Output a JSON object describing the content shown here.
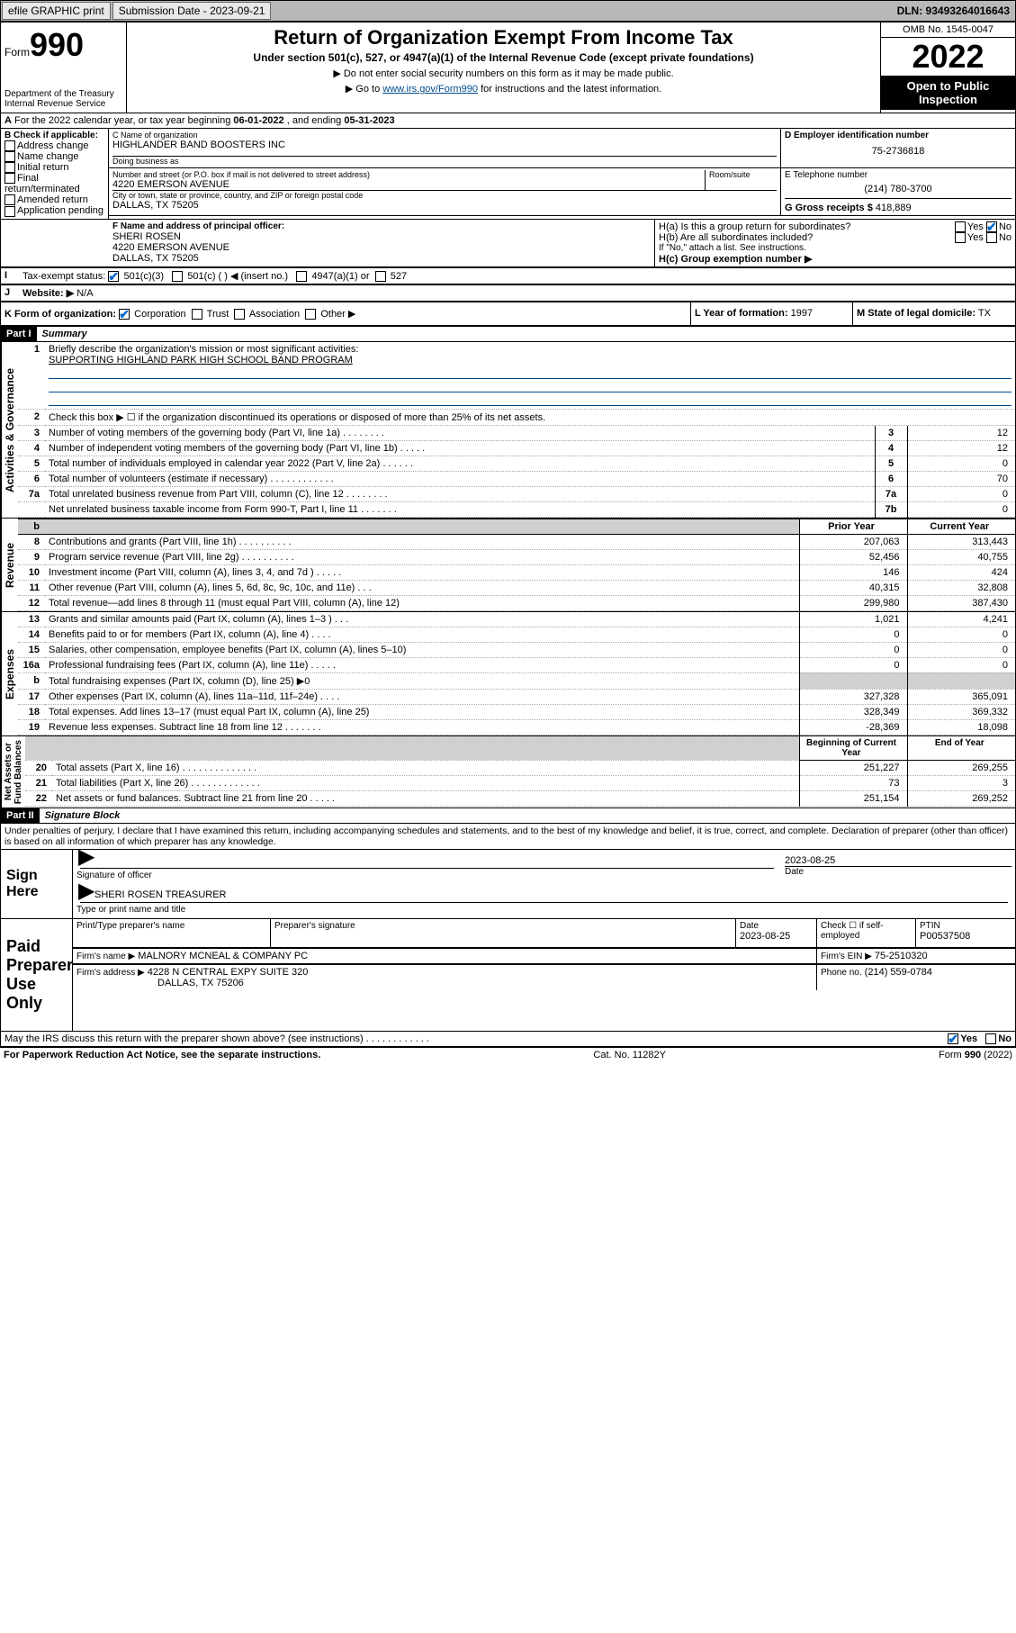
{
  "topbar": {
    "efile": "efile GRAPHIC print",
    "submission_label": "Submission Date - 2023-09-21",
    "dln": "DLN: 93493264016643"
  },
  "header": {
    "form_word": "Form",
    "form_num": "990",
    "title": "Return of Organization Exempt From Income Tax",
    "subtitle": "Under section 501(c), 527, or 4947(a)(1) of the Internal Revenue Code (except private foundations)",
    "note1": "▶ Do not enter social security numbers on this form as it may be made public.",
    "note2_pre": "▶ Go to ",
    "note2_link": "www.irs.gov/Form990",
    "note2_post": " for instructions and the latest information.",
    "dept": "Department of the Treasury\nInternal Revenue Service",
    "omb": "OMB No. 1545-0047",
    "year": "2022",
    "open": "Open to Public Inspection"
  },
  "lineA": {
    "text_pre": "For the 2022 calendar year, or tax year beginning ",
    "begin": "06-01-2022",
    "mid": " , and ending ",
    "end": "05-31-2023"
  },
  "boxB": {
    "title": "B Check if applicable:",
    "items": [
      "Address change",
      "Name change",
      "Initial return",
      "Final return/terminated",
      "Amended return",
      "Application pending"
    ]
  },
  "boxC": {
    "label_name": "C Name of organization",
    "org_name": "HIGHLANDER BAND BOOSTERS INC",
    "dba_label": "Doing business as",
    "dba": "",
    "addr_label": "Number and street (or P.O. box if mail is not delivered to street address)",
    "room_label": "Room/suite",
    "street": "4220 EMERSON AVENUE",
    "city_label": "City or town, state or province, country, and ZIP or foreign postal code",
    "city": "DALLAS, TX  75205"
  },
  "boxD": {
    "label": "D Employer identification number",
    "value": "75-2736818"
  },
  "boxE": {
    "label": "E Telephone number",
    "value": "(214) 780-3700"
  },
  "boxG": {
    "label": "G Gross receipts $",
    "value": "418,889"
  },
  "boxF": {
    "label": "F Name and address of principal officer:",
    "name": "SHERI ROSEN",
    "street": "4220 EMERSON AVENUE",
    "city": "DALLAS, TX  75205"
  },
  "boxH": {
    "a_label": "H(a)  Is this a group return for subordinates?",
    "a_yes": "Yes",
    "a_no": "No",
    "b_label": "H(b)  Are all subordinates included?",
    "b_yes": "Yes",
    "b_no": "No",
    "b_note": "If \"No,\" attach a list. See instructions.",
    "c_label": "H(c)  Group exemption number ▶"
  },
  "boxI": {
    "label": "Tax-exempt status:",
    "opt1": "501(c)(3)",
    "opt2": "501(c) (   ) ◀ (insert no.)",
    "opt3": "4947(a)(1) or",
    "opt4": "527"
  },
  "boxJ": {
    "label": "Website: ▶",
    "value": "N/A"
  },
  "boxK": {
    "label": "K Form of organization:",
    "opts": [
      "Corporation",
      "Trust",
      "Association",
      "Other ▶"
    ]
  },
  "boxL": {
    "label": "L Year of formation:",
    "value": "1997"
  },
  "boxM": {
    "label": "M State of legal domicile:",
    "value": "TX"
  },
  "part1": {
    "header": "Part I",
    "title": "Summary",
    "line1_label": "Briefly describe the organization's mission or most significant activities:",
    "line1_value": "SUPPORTING HIGHLAND PARK HIGH SCHOOL BAND PROGRAM",
    "line2": "Check this box ▶ ☐  if the organization discontinued its operations or disposed of more than 25% of its net assets.",
    "sectA_label": "Activities & Governance",
    "sectR_label": "Revenue",
    "sectE_label": "Expenses",
    "sectN_label": "Net Assets or\nFund Balances",
    "colA": "Prior Year",
    "colB": "Current Year",
    "colC": "Beginning of Current Year",
    "colD": "End of Year",
    "rowsA": [
      {
        "n": "3",
        "t": "Number of voting members of the governing body (Part VI, line 1a)   .    .    .    .    .    .    .    .",
        "r": "3",
        "v": "12"
      },
      {
        "n": "4",
        "t": "Number of independent voting members of the governing body (Part VI, line 1b)    .    .    .    .    .",
        "r": "4",
        "v": "12"
      },
      {
        "n": "5",
        "t": "Total number of individuals employed in calendar year 2022 (Part V, line 2a)    .    .    .    .    .    .",
        "r": "5",
        "v": "0"
      },
      {
        "n": "6",
        "t": "Total number of volunteers (estimate if necessary)    .    .    .    .    .    .    .    .    .    .    .    .",
        "r": "6",
        "v": "70"
      },
      {
        "n": "7a",
        "t": "Total unrelated business revenue from Part VIII, column (C), line 12   .    .    .    .    .    .    .    .",
        "r": "7a",
        "v": "0"
      },
      {
        "n": "",
        "t": "Net unrelated business taxable income from Form 990-T, Part I, line 11   .    .    .    .    .    .    .",
        "r": "7b",
        "v": "0"
      }
    ],
    "rowsR": [
      {
        "n": "8",
        "t": "Contributions and grants (Part VIII, line 1h)   .    .    .    .    .    .    .    .    .    .",
        "p": "207,063",
        "c": "313,443"
      },
      {
        "n": "9",
        "t": "Program service revenue (Part VIII, line 2g)   .    .    .    .    .    .    .    .    .    .",
        "p": "52,456",
        "c": "40,755"
      },
      {
        "n": "10",
        "t": "Investment income (Part VIII, column (A), lines 3, 4, and 7d )    .    .    .    .    .",
        "p": "146",
        "c": "424"
      },
      {
        "n": "11",
        "t": "Other revenue (Part VIII, column (A), lines 5, 6d, 8c, 9c, 10c, and 11e)    .    .    .",
        "p": "40,315",
        "c": "32,808"
      },
      {
        "n": "12",
        "t": "Total revenue—add lines 8 through 11 (must equal Part VIII, column (A), line 12)",
        "p": "299,980",
        "c": "387,430"
      }
    ],
    "rowsE": [
      {
        "n": "13",
        "t": "Grants and similar amounts paid (Part IX, column (A), lines 1–3 )   .    .    .",
        "p": "1,021",
        "c": "4,241"
      },
      {
        "n": "14",
        "t": "Benefits paid to or for members (Part IX, column (A), line 4)    .    .    .    .",
        "p": "0",
        "c": "0"
      },
      {
        "n": "15",
        "t": "Salaries, other compensation, employee benefits (Part IX, column (A), lines 5–10)",
        "p": "0",
        "c": "0"
      },
      {
        "n": "16a",
        "t": "Professional fundraising fees (Part IX, column (A), line 11e)   .    .    .    .    .",
        "p": "0",
        "c": "0"
      },
      {
        "n": "b",
        "t": "Total fundraising expenses (Part IX, column (D), line 25) ▶0",
        "p": "",
        "c": "",
        "shaded": true
      },
      {
        "n": "17",
        "t": "Other expenses (Part IX, column (A), lines 11a–11d, 11f–24e)   .    .    .    .",
        "p": "327,328",
        "c": "365,091"
      },
      {
        "n": "18",
        "t": "Total expenses. Add lines 13–17 (must equal Part IX, column (A), line 25)",
        "p": "328,349",
        "c": "369,332"
      },
      {
        "n": "19",
        "t": "Revenue less expenses. Subtract line 18 from line 12   .    .    .    .    .    .    .",
        "p": "-28,369",
        "c": "18,098"
      }
    ],
    "rowsN": [
      {
        "n": "20",
        "t": "Total assets (Part X, line 16)   .    .    .    .    .    .    .    .    .    .    .    .    .    .",
        "p": "251,227",
        "c": "269,255"
      },
      {
        "n": "21",
        "t": "Total liabilities (Part X, line 26)   .    .    .    .    .    .    .    .    .    .    .    .    .",
        "p": "73",
        "c": "3"
      },
      {
        "n": "22",
        "t": "Net assets or fund balances. Subtract line 21 from line 20   .    .    .    .    .",
        "p": "251,154",
        "c": "269,252"
      }
    ]
  },
  "part2": {
    "header": "Part II",
    "title": "Signature Block",
    "decl": "Under penalties of perjury, I declare that I have examined this return, including accompanying schedules and statements, and to the best of my knowledge and belief, it is true, correct, and complete. Declaration of preparer (other than officer) is based on all information of which preparer has any knowledge.",
    "sign_here": "Sign Here",
    "sig_officer": "Signature of officer",
    "sig_date_label": "Date",
    "sig_date": "2023-08-25",
    "sig_name": "SHERI ROSEN  TREASURER",
    "sig_name_label": "Type or print name and title",
    "paid": "Paid Preparer Use Only",
    "prep_name_label": "Print/Type preparer's name",
    "prep_sig_label": "Preparer's signature",
    "prep_date_label": "Date",
    "prep_date": "2023-08-25",
    "prep_check_label": "Check ☐ if self-employed",
    "ptin_label": "PTIN",
    "ptin": "P00537508",
    "firm_name_label": "Firm's name    ▶",
    "firm_name": "MALNORY MCNEAL & COMPANY PC",
    "firm_ein_label": "Firm's EIN ▶",
    "firm_ein": "75-2510320",
    "firm_addr_label": "Firm's address ▶",
    "firm_addr1": "4228 N CENTRAL EXPY SUITE 320",
    "firm_addr2": "DALLAS, TX  75206",
    "firm_phone_label": "Phone no.",
    "firm_phone": "(214) 559-0784",
    "discuss": "May the IRS discuss this return with the preparer shown above? (see instructions)    .    .    .    .    .    .    .    .    .    .    .    .",
    "discuss_yes": "Yes",
    "discuss_no": "No"
  },
  "footer": {
    "left": "For Paperwork Reduction Act Notice, see the separate instructions.",
    "mid": "Cat. No. 11282Y",
    "right": "Form 990 (2022)"
  },
  "colors": {
    "link": "#004b8d",
    "check": "#0066cc"
  }
}
